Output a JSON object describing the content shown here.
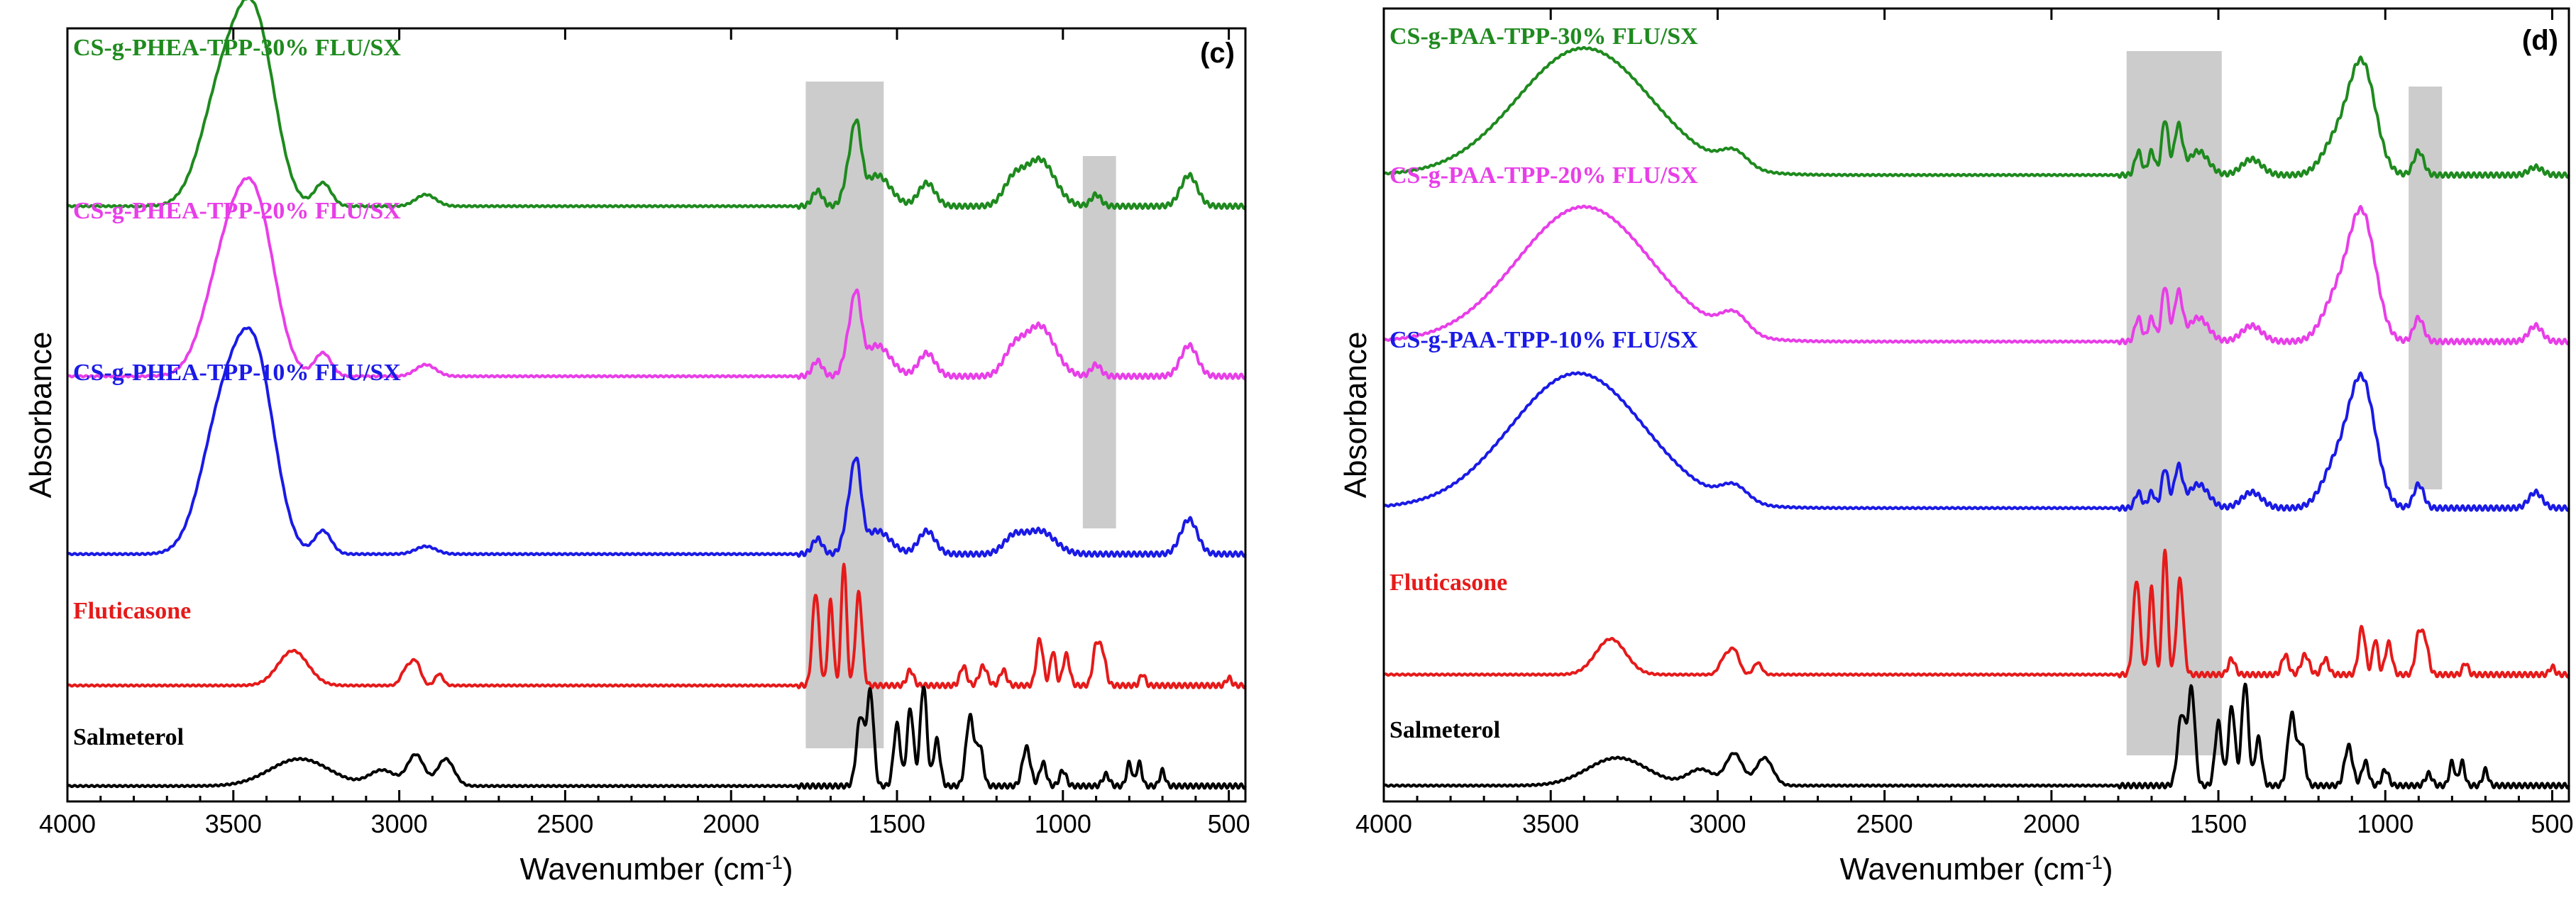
{
  "chart_data": [
    {
      "type": "line",
      "panel_label": "(c)",
      "xlabel": "Wavenumber (cm",
      "xlabel_sup": "-1",
      "xlabel_close": ")",
      "ylabel": "Absorbance",
      "xlim": [
        4000,
        450
      ],
      "x_reversed": true,
      "xticks": [
        4000,
        3500,
        3000,
        2500,
        2000,
        1500,
        1000,
        500
      ],
      "highlight_bands": [
        [
          1775,
          1540
        ],
        [
          940,
          840
        ]
      ],
      "series": [
        {
          "name": "CS-g-PHEA-TPP-30% FLU/SX",
          "color": "#1e8a1e",
          "baseline": 0.77,
          "peaks": [
            [
              3550,
              0.1,
              60
            ],
            [
              3420,
              0.16,
              55
            ],
            [
              3480,
              0.12,
              60
            ],
            [
              3230,
              0.03,
              25
            ],
            [
              2920,
              0.015,
              30
            ],
            [
              1740,
              0.02,
              15
            ],
            [
              1640,
              0.05,
              18
            ],
            [
              1620,
              0.07,
              14
            ],
            [
              1560,
              0.04,
              40
            ],
            [
              1410,
              0.03,
              25
            ],
            [
              1150,
              0.03,
              30
            ],
            [
              1070,
              0.06,
              45
            ],
            [
              900,
              0.015,
              15
            ],
            [
              620,
              0.04,
              25
            ]
          ]
        },
        {
          "name": "CS-g-PHEA-TPP-20% FLU/SX",
          "color": "#e83ee8",
          "baseline": 0.55,
          "peaks": [
            [
              3540,
              0.09,
              60
            ],
            [
              3420,
              0.15,
              55
            ],
            [
              3480,
              0.11,
              60
            ],
            [
              3230,
              0.03,
              25
            ],
            [
              2920,
              0.015,
              30
            ],
            [
              1740,
              0.02,
              15
            ],
            [
              1640,
              0.05,
              18
            ],
            [
              1620,
              0.07,
              14
            ],
            [
              1560,
              0.04,
              40
            ],
            [
              1410,
              0.03,
              25
            ],
            [
              1150,
              0.03,
              30
            ],
            [
              1070,
              0.065,
              45
            ],
            [
              900,
              0.015,
              15
            ],
            [
              620,
              0.04,
              25
            ]
          ]
        },
        {
          "name": "CS-g-PHEA-TPP-10% FLU/SX",
          "color": "#1a1ae6",
          "baseline": 0.32,
          "peaks": [
            [
              3550,
              0.12,
              60
            ],
            [
              3420,
              0.17,
              55
            ],
            [
              3480,
              0.13,
              60
            ],
            [
              3230,
              0.03,
              25
            ],
            [
              2920,
              0.01,
              30
            ],
            [
              1740,
              0.02,
              15
            ],
            [
              1640,
              0.06,
              18
            ],
            [
              1620,
              0.08,
              14
            ],
            [
              1560,
              0.03,
              40
            ],
            [
              1410,
              0.03,
              25
            ],
            [
              1150,
              0.02,
              30
            ],
            [
              1070,
              0.03,
              45
            ],
            [
              620,
              0.045,
              25
            ]
          ]
        },
        {
          "name": "Fluticasone",
          "color": "#e61a1a",
          "baseline": 0.15,
          "peaks": [
            [
              3320,
              0.045,
              45
            ],
            [
              2980,
              0.02,
              15
            ],
            [
              2950,
              0.03,
              15
            ],
            [
              2880,
              0.015,
              12
            ],
            [
              1745,
              0.12,
              10
            ],
            [
              1700,
              0.11,
              8
            ],
            [
              1660,
              0.16,
              8
            ],
            [
              1615,
              0.12,
              10
            ],
            [
              1460,
              0.02,
              10
            ],
            [
              1300,
              0.025,
              10
            ],
            [
              1240,
              0.025,
              12
            ],
            [
              1180,
              0.02,
              10
            ],
            [
              1070,
              0.06,
              10
            ],
            [
              1030,
              0.045,
              8
            ],
            [
              990,
              0.04,
              10
            ],
            [
              900,
              0.05,
              10
            ],
            [
              880,
              0.04,
              10
            ],
            [
              760,
              0.015,
              8
            ],
            [
              500,
              0.01,
              8
            ]
          ]
        },
        {
          "name": "Salmeterol",
          "color": "#000000",
          "baseline": 0.02,
          "peaks": [
            [
              3300,
              0.035,
              90
            ],
            [
              3050,
              0.02,
              40
            ],
            [
              2950,
              0.04,
              25
            ],
            [
              2860,
              0.035,
              25
            ],
            [
              1610,
              0.09,
              12
            ],
            [
              1580,
              0.12,
              10
            ],
            [
              1500,
              0.08,
              10
            ],
            [
              1460,
              0.1,
              10
            ],
            [
              1420,
              0.13,
              10
            ],
            [
              1380,
              0.06,
              10
            ],
            [
              1280,
              0.09,
              12
            ],
            [
              1250,
              0.05,
              10
            ],
            [
              1110,
              0.05,
              12
            ],
            [
              1060,
              0.03,
              10
            ],
            [
              1000,
              0.02,
              10
            ],
            [
              870,
              0.015,
              10
            ],
            [
              800,
              0.03,
              8
            ],
            [
              770,
              0.03,
              8
            ],
            [
              700,
              0.02,
              8
            ]
          ]
        }
      ]
    },
    {
      "type": "line",
      "panel_label": "(d)",
      "xlabel": "Wavenumber (cm",
      "xlabel_sup": "-1",
      "xlabel_close": ")",
      "ylabel": "Absorbance",
      "xlim": [
        4000,
        450
      ],
      "x_reversed": true,
      "xticks": [
        4000,
        3500,
        3000,
        2500,
        2000,
        1500,
        1000,
        500
      ],
      "highlight_bands": [
        [
          1775,
          1490
        ],
        [
          930,
          830
        ]
      ],
      "series": [
        {
          "name": "CS-g-PAA-TPP-30% FLU/SX",
          "color": "#1e8a1e",
          "baseline": 0.79,
          "peaks": [
            [
              3400,
              0.16,
              200
            ],
            [
              2950,
              0.02,
              40
            ],
            [
              1740,
              0.03,
              10
            ],
            [
              1700,
              0.03,
              10
            ],
            [
              1660,
              0.07,
              10
            ],
            [
              1620,
              0.06,
              12
            ],
            [
              1560,
              0.03,
              30
            ],
            [
              1400,
              0.02,
              30
            ],
            [
              1150,
              0.04,
              40
            ],
            [
              1070,
              0.14,
              40
            ],
            [
              900,
              0.03,
              15
            ],
            [
              550,
              0.01,
              20
            ]
          ]
        },
        {
          "name": "CS-g-PAA-TPP-20% FLU/SX",
          "color": "#e83ee8",
          "baseline": 0.58,
          "peaks": [
            [
              3400,
              0.17,
              200
            ],
            [
              2950,
              0.025,
              40
            ],
            [
              1740,
              0.03,
              10
            ],
            [
              1700,
              0.03,
              10
            ],
            [
              1660,
              0.07,
              10
            ],
            [
              1620,
              0.06,
              12
            ],
            [
              1560,
              0.03,
              30
            ],
            [
              1400,
              0.02,
              30
            ],
            [
              1150,
              0.05,
              40
            ],
            [
              1070,
              0.16,
              40
            ],
            [
              900,
              0.03,
              15
            ],
            [
              550,
              0.02,
              20
            ]
          ]
        },
        {
          "name": "CS-g-PAA-TPP-10% FLU/SX",
          "color": "#1a1ae6",
          "baseline": 0.37,
          "peaks": [
            [
              3420,
              0.17,
              200
            ],
            [
              2950,
              0.02,
              40
            ],
            [
              1740,
              0.02,
              10
            ],
            [
              1700,
              0.02,
              10
            ],
            [
              1660,
              0.05,
              10
            ],
            [
              1620,
              0.05,
              12
            ],
            [
              1560,
              0.03,
              30
            ],
            [
              1400,
              0.02,
              30
            ],
            [
              1150,
              0.05,
              40
            ],
            [
              1070,
              0.16,
              40
            ],
            [
              900,
              0.03,
              15
            ],
            [
              550,
              0.02,
              20
            ]
          ]
        },
        {
          "name": "Fluticasone",
          "color": "#e61a1a",
          "baseline": 0.16,
          "peaks": [
            [
              3320,
              0.045,
              45
            ],
            [
              2980,
              0.02,
              15
            ],
            [
              2950,
              0.03,
              15
            ],
            [
              2880,
              0.015,
              12
            ],
            [
              1745,
              0.12,
              10
            ],
            [
              1700,
              0.11,
              8
            ],
            [
              1660,
              0.16,
              8
            ],
            [
              1615,
              0.12,
              10
            ],
            [
              1460,
              0.02,
              10
            ],
            [
              1300,
              0.025,
              10
            ],
            [
              1240,
              0.025,
              12
            ],
            [
              1180,
              0.02,
              10
            ],
            [
              1070,
              0.06,
              10
            ],
            [
              1030,
              0.045,
              8
            ],
            [
              990,
              0.04,
              10
            ],
            [
              900,
              0.05,
              10
            ],
            [
              880,
              0.04,
              10
            ],
            [
              760,
              0.015,
              8
            ],
            [
              500,
              0.01,
              8
            ]
          ]
        },
        {
          "name": "Salmeterol",
          "color": "#000000",
          "baseline": 0.02,
          "peaks": [
            [
              3300,
              0.035,
              90
            ],
            [
              3050,
              0.02,
              40
            ],
            [
              2950,
              0.04,
              25
            ],
            [
              2860,
              0.035,
              25
            ],
            [
              1610,
              0.09,
              12
            ],
            [
              1580,
              0.12,
              10
            ],
            [
              1500,
              0.08,
              10
            ],
            [
              1460,
              0.1,
              10
            ],
            [
              1420,
              0.13,
              10
            ],
            [
              1380,
              0.06,
              10
            ],
            [
              1280,
              0.09,
              12
            ],
            [
              1250,
              0.05,
              10
            ],
            [
              1110,
              0.05,
              12
            ],
            [
              1060,
              0.03,
              10
            ],
            [
              1000,
              0.02,
              10
            ],
            [
              870,
              0.015,
              10
            ],
            [
              800,
              0.03,
              8
            ],
            [
              770,
              0.03,
              8
            ],
            [
              700,
              0.02,
              8
            ]
          ]
        }
      ]
    }
  ]
}
